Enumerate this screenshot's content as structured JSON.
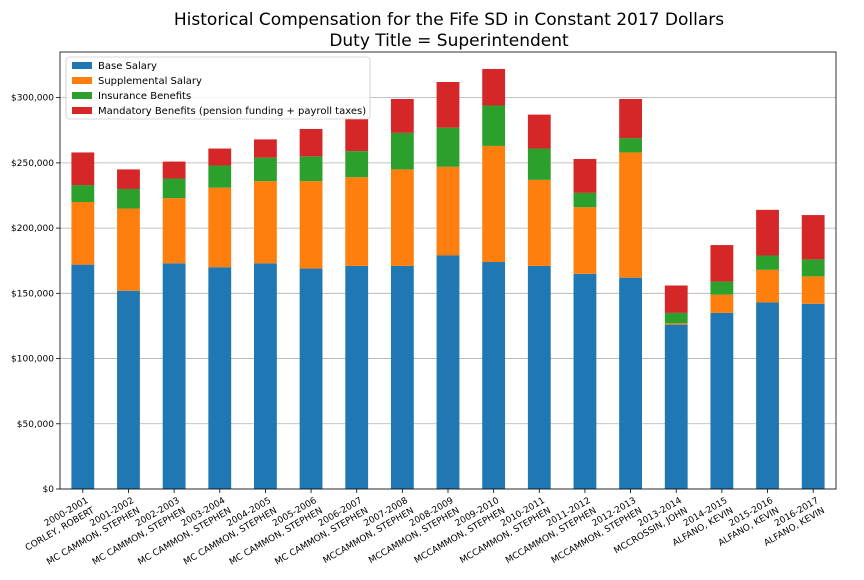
{
  "chart_data": {
    "type": "bar",
    "stacked": true,
    "title": "Historical Compensation for the Fife SD in Constant 2017 Dollars",
    "subtitle": "Duty Title = Superintendent",
    "xlabel": "",
    "ylabel": "",
    "ylim": [
      0,
      335000
    ],
    "yticks": [
      0,
      50000,
      100000,
      150000,
      200000,
      250000,
      300000
    ],
    "ytick_labels": [
      "$0",
      "$50,000",
      "$100,000",
      "$150,000",
      "$200,000",
      "$250,000",
      "$300,000"
    ],
    "grid": "horizontal",
    "legend_position": "top-left",
    "categories": [
      {
        "year": "2000-2001",
        "name": "CORLEY, ROBERT"
      },
      {
        "year": "2001-2002",
        "name": "MC CAMMON, STEPHEN"
      },
      {
        "year": "2002-2003",
        "name": "MC CAMMON, STEPHEN"
      },
      {
        "year": "2003-2004",
        "name": "MC CAMMON, STEPHEN"
      },
      {
        "year": "2004-2005",
        "name": "MC CAMMON, STEPHEN"
      },
      {
        "year": "2005-2006",
        "name": "MC CAMMON, STEPHEN"
      },
      {
        "year": "2006-2007",
        "name": "MC CAMMON, STEPHEN"
      },
      {
        "year": "2007-2008",
        "name": "MCCAMMON, STEPHEN"
      },
      {
        "year": "2008-2009",
        "name": "MCCAMMON, STEPHEN"
      },
      {
        "year": "2009-2010",
        "name": "MCCAMMON, STEPHEN"
      },
      {
        "year": "2010-2011",
        "name": "MCCAMMON, STEPHEN"
      },
      {
        "year": "2011-2012",
        "name": "MCCAMMON, STEPHEN"
      },
      {
        "year": "2012-2013",
        "name": "MCCAMMON, STEPHEN"
      },
      {
        "year": "2013-2014",
        "name": "MCCROSSIN, JOHN"
      },
      {
        "year": "2014-2015",
        "name": "ALFANO, KEVIN"
      },
      {
        "year": "2015-2016",
        "name": "ALFANO, KEVIN"
      },
      {
        "year": "2016-2017",
        "name": "ALFANO, KEVIN"
      }
    ],
    "series": [
      {
        "name": "Base Salary",
        "color": "#1f77b4",
        "values": [
          172000,
          152000,
          173000,
          170000,
          173000,
          169000,
          171000,
          171000,
          179000,
          174000,
          171000,
          165000,
          162000,
          126000,
          135000,
          143000,
          142000
        ]
      },
      {
        "name": "Supplemental Salary",
        "color": "#ff7f0e",
        "values": [
          48000,
          63000,
          50000,
          61000,
          63000,
          67000,
          68000,
          74000,
          68000,
          89000,
          66000,
          51000,
          96000,
          1000,
          14000,
          25000,
          21000
        ]
      },
      {
        "name": "Insurance Benefits",
        "color": "#2ca02c",
        "values": [
          13000,
          15000,
          15000,
          17000,
          18000,
          19000,
          20000,
          28000,
          30000,
          31000,
          24000,
          11000,
          11000,
          8000,
          10000,
          11000,
          13000
        ]
      },
      {
        "name": "Mandatory Benefits (pension funding + payroll taxes)",
        "color": "#d62728",
        "values": [
          25000,
          15000,
          13000,
          13000,
          14000,
          21000,
          25000,
          26000,
          35000,
          28000,
          26000,
          26000,
          30000,
          21000,
          28000,
          35000,
          34000
        ]
      }
    ]
  }
}
